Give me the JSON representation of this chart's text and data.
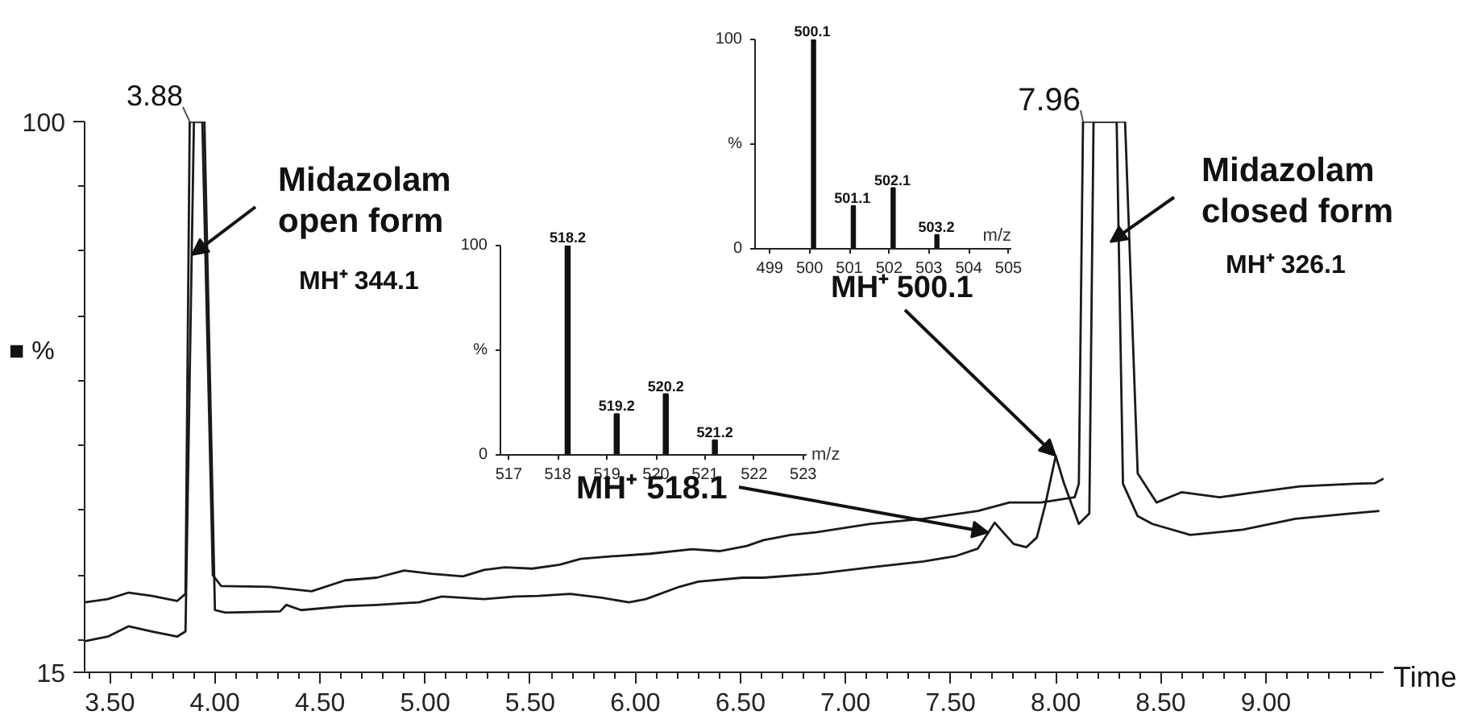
{
  "chart_data": [
    {
      "type": "line",
      "xlabel": "Time",
      "ylabel": "■ %",
      "series": [
        {
          "color": "#1a1a1a",
          "x": [
            3.38,
            3.49,
            3.59,
            3.7,
            3.82,
            3.86,
            3.88,
            3.94,
            3.99,
            4.03,
            4.26,
            4.46,
            4.62,
            4.77,
            4.9,
            5.03,
            5.18,
            5.28,
            5.38,
            5.51,
            5.64,
            5.74,
            5.89,
            6.07,
            6.27,
            6.4,
            6.53,
            6.61,
            6.74,
            6.86,
            7.12,
            7.37,
            7.63,
            7.78,
            7.93,
            8.09,
            8.11,
            8.13,
            8.33,
            8.39,
            8.48,
            8.6,
            8.78,
            8.91,
            9.16,
            9.42,
            9.52,
            9.56
          ],
          "values": [
            25.8,
            26.3,
            27.3,
            26.8,
            26.0,
            27.1,
            100,
            100,
            30.0,
            28.3,
            28.2,
            27.5,
            29.2,
            29.6,
            30.7,
            30.2,
            29.8,
            30.8,
            31.2,
            31.0,
            31.6,
            32.5,
            32.9,
            33.3,
            34.0,
            33.7,
            34.5,
            35.4,
            36.2,
            36.6,
            37.9,
            38.7,
            39.9,
            41.2,
            41.2,
            42.0,
            44.1,
            100,
            100,
            45.7,
            41.2,
            42.8,
            42.0,
            42.6,
            43.7,
            44.1,
            44.2,
            44.9
          ]
        },
        {
          "color": "#1a1a1a",
          "x": [
            3.38,
            3.49,
            3.59,
            3.7,
            3.82,
            3.86,
            3.9,
            3.95,
            4.0,
            4.05,
            4.31,
            4.34,
            4.41,
            4.62,
            4.77,
            4.97,
            5.08,
            5.28,
            5.43,
            5.54,
            5.69,
            5.84,
            5.97,
            6.05,
            6.21,
            6.3,
            6.51,
            6.61,
            6.86,
            7.12,
            7.37,
            7.52,
            7.63,
            7.68,
            7.71,
            7.75,
            7.8,
            7.86,
            7.91,
            7.95,
            8.0,
            8.04,
            8.11,
            8.16,
            8.18,
            8.29,
            8.32,
            8.39,
            8.46,
            8.64,
            8.89,
            9.14,
            9.27,
            9.4,
            9.54
          ],
          "values": [
            19.8,
            20.5,
            22.1,
            21.3,
            20.5,
            21.3,
            100,
            100,
            24.6,
            24.2,
            24.4,
            25.4,
            24.6,
            25.2,
            25.4,
            25.8,
            26.7,
            26.3,
            26.7,
            26.8,
            27.1,
            26.5,
            25.8,
            26.3,
            28.2,
            29.0,
            29.6,
            29.6,
            30.2,
            31.2,
            32.1,
            32.9,
            34.1,
            36.6,
            38.1,
            36.6,
            34.8,
            34.3,
            35.8,
            40.8,
            48.4,
            44.1,
            37.9,
            39.5,
            100,
            100,
            44.1,
            39.1,
            37.9,
            36.2,
            37.0,
            38.7,
            39.1,
            39.5,
            39.9
          ]
        }
      ],
      "xlim": [
        3.38,
        9.56
      ],
      "ylim": [
        15,
        100
      ],
      "xticks": [
        {
          "value": 3.4,
          "label": null
        },
        {
          "value": 3.5,
          "label": "3.50"
        },
        {
          "value": 3.6,
          "label": null
        },
        {
          "value": 3.7,
          "label": null
        },
        {
          "value": 3.8,
          "label": null
        },
        {
          "value": 3.9,
          "label": null
        },
        {
          "value": 4.0,
          "label": "4.00"
        },
        {
          "value": 4.1,
          "label": null
        },
        {
          "value": 4.2,
          "label": null
        },
        {
          "value": 4.3,
          "label": null
        },
        {
          "value": 4.4,
          "label": null
        },
        {
          "value": 4.5,
          "label": "4.50"
        },
        {
          "value": 4.6,
          "label": null
        },
        {
          "value": 4.7,
          "label": null
        },
        {
          "value": 4.8,
          "label": null
        },
        {
          "value": 4.9,
          "label": null
        },
        {
          "value": 5.0,
          "label": "5.00"
        },
        {
          "value": 5.1,
          "label": null
        },
        {
          "value": 5.2,
          "label": null
        },
        {
          "value": 5.3,
          "label": null
        },
        {
          "value": 5.4,
          "label": null
        },
        {
          "value": 5.5,
          "label": "5.50"
        },
        {
          "value": 5.6,
          "label": null
        },
        {
          "value": 5.7,
          "label": null
        },
        {
          "value": 5.8,
          "label": null
        },
        {
          "value": 5.9,
          "label": null
        },
        {
          "value": 6.0,
          "label": "6.00"
        },
        {
          "value": 6.1,
          "label": null
        },
        {
          "value": 6.2,
          "label": null
        },
        {
          "value": 6.3,
          "label": null
        },
        {
          "value": 6.4,
          "label": null
        },
        {
          "value": 6.5,
          "label": "6.50"
        },
        {
          "value": 6.6,
          "label": null
        },
        {
          "value": 6.7,
          "label": null
        },
        {
          "value": 6.8,
          "label": null
        },
        {
          "value": 6.9,
          "label": null
        },
        {
          "value": 7.0,
          "label": "7.00"
        },
        {
          "value": 7.1,
          "label": null
        },
        {
          "value": 7.2,
          "label": null
        },
        {
          "value": 7.3,
          "label": null
        },
        {
          "value": 7.4,
          "label": null
        },
        {
          "value": 7.5,
          "label": "7.50"
        },
        {
          "value": 7.6,
          "label": null
        },
        {
          "value": 7.7,
          "label": null
        },
        {
          "value": 7.8,
          "label": null
        },
        {
          "value": 7.9,
          "label": null
        },
        {
          "value": 8.0,
          "label": "8.00"
        },
        {
          "value": 8.1,
          "label": null
        },
        {
          "value": 8.2,
          "label": null
        },
        {
          "value": 8.3,
          "label": null
        },
        {
          "value": 8.4,
          "label": null
        },
        {
          "value": 8.5,
          "label": "8.50"
        },
        {
          "value": 8.6,
          "label": null
        },
        {
          "value": 8.7,
          "label": null
        },
        {
          "value": 8.8,
          "label": null
        },
        {
          "value": 8.9,
          "label": null
        },
        {
          "value": 9.0,
          "label": "9.00"
        },
        {
          "value": 9.1,
          "label": null
        },
        {
          "value": 9.2,
          "label": null
        },
        {
          "value": 9.3,
          "label": null
        },
        {
          "value": 9.4,
          "label": null
        },
        {
          "value": 9.5,
          "label": null
        }
      ],
      "yticks": [
        15,
        {
          "value": 20,
          "label": null
        },
        {
          "value": 30,
          "label": null
        },
        {
          "value": 40,
          "label": null
        },
        {
          "value": 50,
          "label": null
        },
        {
          "value": 60,
          "label": null
        },
        {
          "value": 70,
          "label": null
        },
        {
          "value": 80,
          "label": null
        },
        {
          "value": 90,
          "label": null
        },
        100
      ],
      "annotations": [
        {
          "text": "3.88",
          "x": 3.88,
          "y": 100
        },
        {
          "text": "Midazolam\nopen form",
          "x": 3.89,
          "y": 79.4
        },
        "MH⁺ 344.1",
        {
          "text": "7.96",
          "x": 8.13,
          "y": 100
        },
        {
          "text": "Midazolam\nclosed form",
          "x": 8.26,
          "y": 81.4
        },
        "MH⁺ 326.1",
        {
          "text": "MH⁺ 518.1",
          "x": 7.68,
          "y": 36.6
        },
        {
          "text": "MH⁺ 500.1",
          "x": 8.0,
          "y": 48.4
        }
      ]
    },
    {
      "type": "bar",
      "xlabel": "m/z",
      "color": "#111111",
      "x": [
        518.2,
        519.2,
        520.2,
        521.2
      ],
      "values": [
        100,
        19.5,
        29,
        7
      ],
      "annotations": [
        {
          "text": "518.2",
          "x": 518.2,
          "y": 100
        },
        {
          "text": "519.2",
          "x": 519.2,
          "y": 19.5
        },
        {
          "text": "520.2",
          "x": 520.2,
          "y": 29
        },
        {
          "text": "521.2",
          "x": 521.2,
          "y": 7
        }
      ],
      "xlim": [
        516.83,
        523.07
      ],
      "ylim": [
        0,
        100
      ],
      "xticks": [
        517,
        518,
        519,
        520,
        521,
        522,
        523
      ],
      "yticks": [
        0,
        {
          "value": 50,
          "label": "%"
        },
        100
      ]
    },
    {
      "type": "bar",
      "xlabel": "m/z",
      "color": "#111111",
      "x": [
        500.1,
        501.1,
        502.1,
        503.2
      ],
      "values": [
        100,
        20.5,
        29,
        6.6
      ],
      "annotations": [
        {
          "text": "500.1",
          "x": 500.1,
          "y": 100
        },
        {
          "text": "501.1",
          "x": 501.1,
          "y": 20.5
        },
        {
          "text": "502.1",
          "x": 502.1,
          "y": 29
        },
        {
          "text": "503.2",
          "x": 503.2,
          "y": 6.6
        }
      ],
      "xlim": [
        498.63,
        505.07
      ],
      "ylim": [
        0,
        100
      ],
      "xticks": [
        499,
        500,
        501,
        502,
        503,
        504,
        505
      ],
      "yticks": [
        0,
        {
          "value": 50,
          "label": "%"
        },
        100
      ]
    }
  ]
}
